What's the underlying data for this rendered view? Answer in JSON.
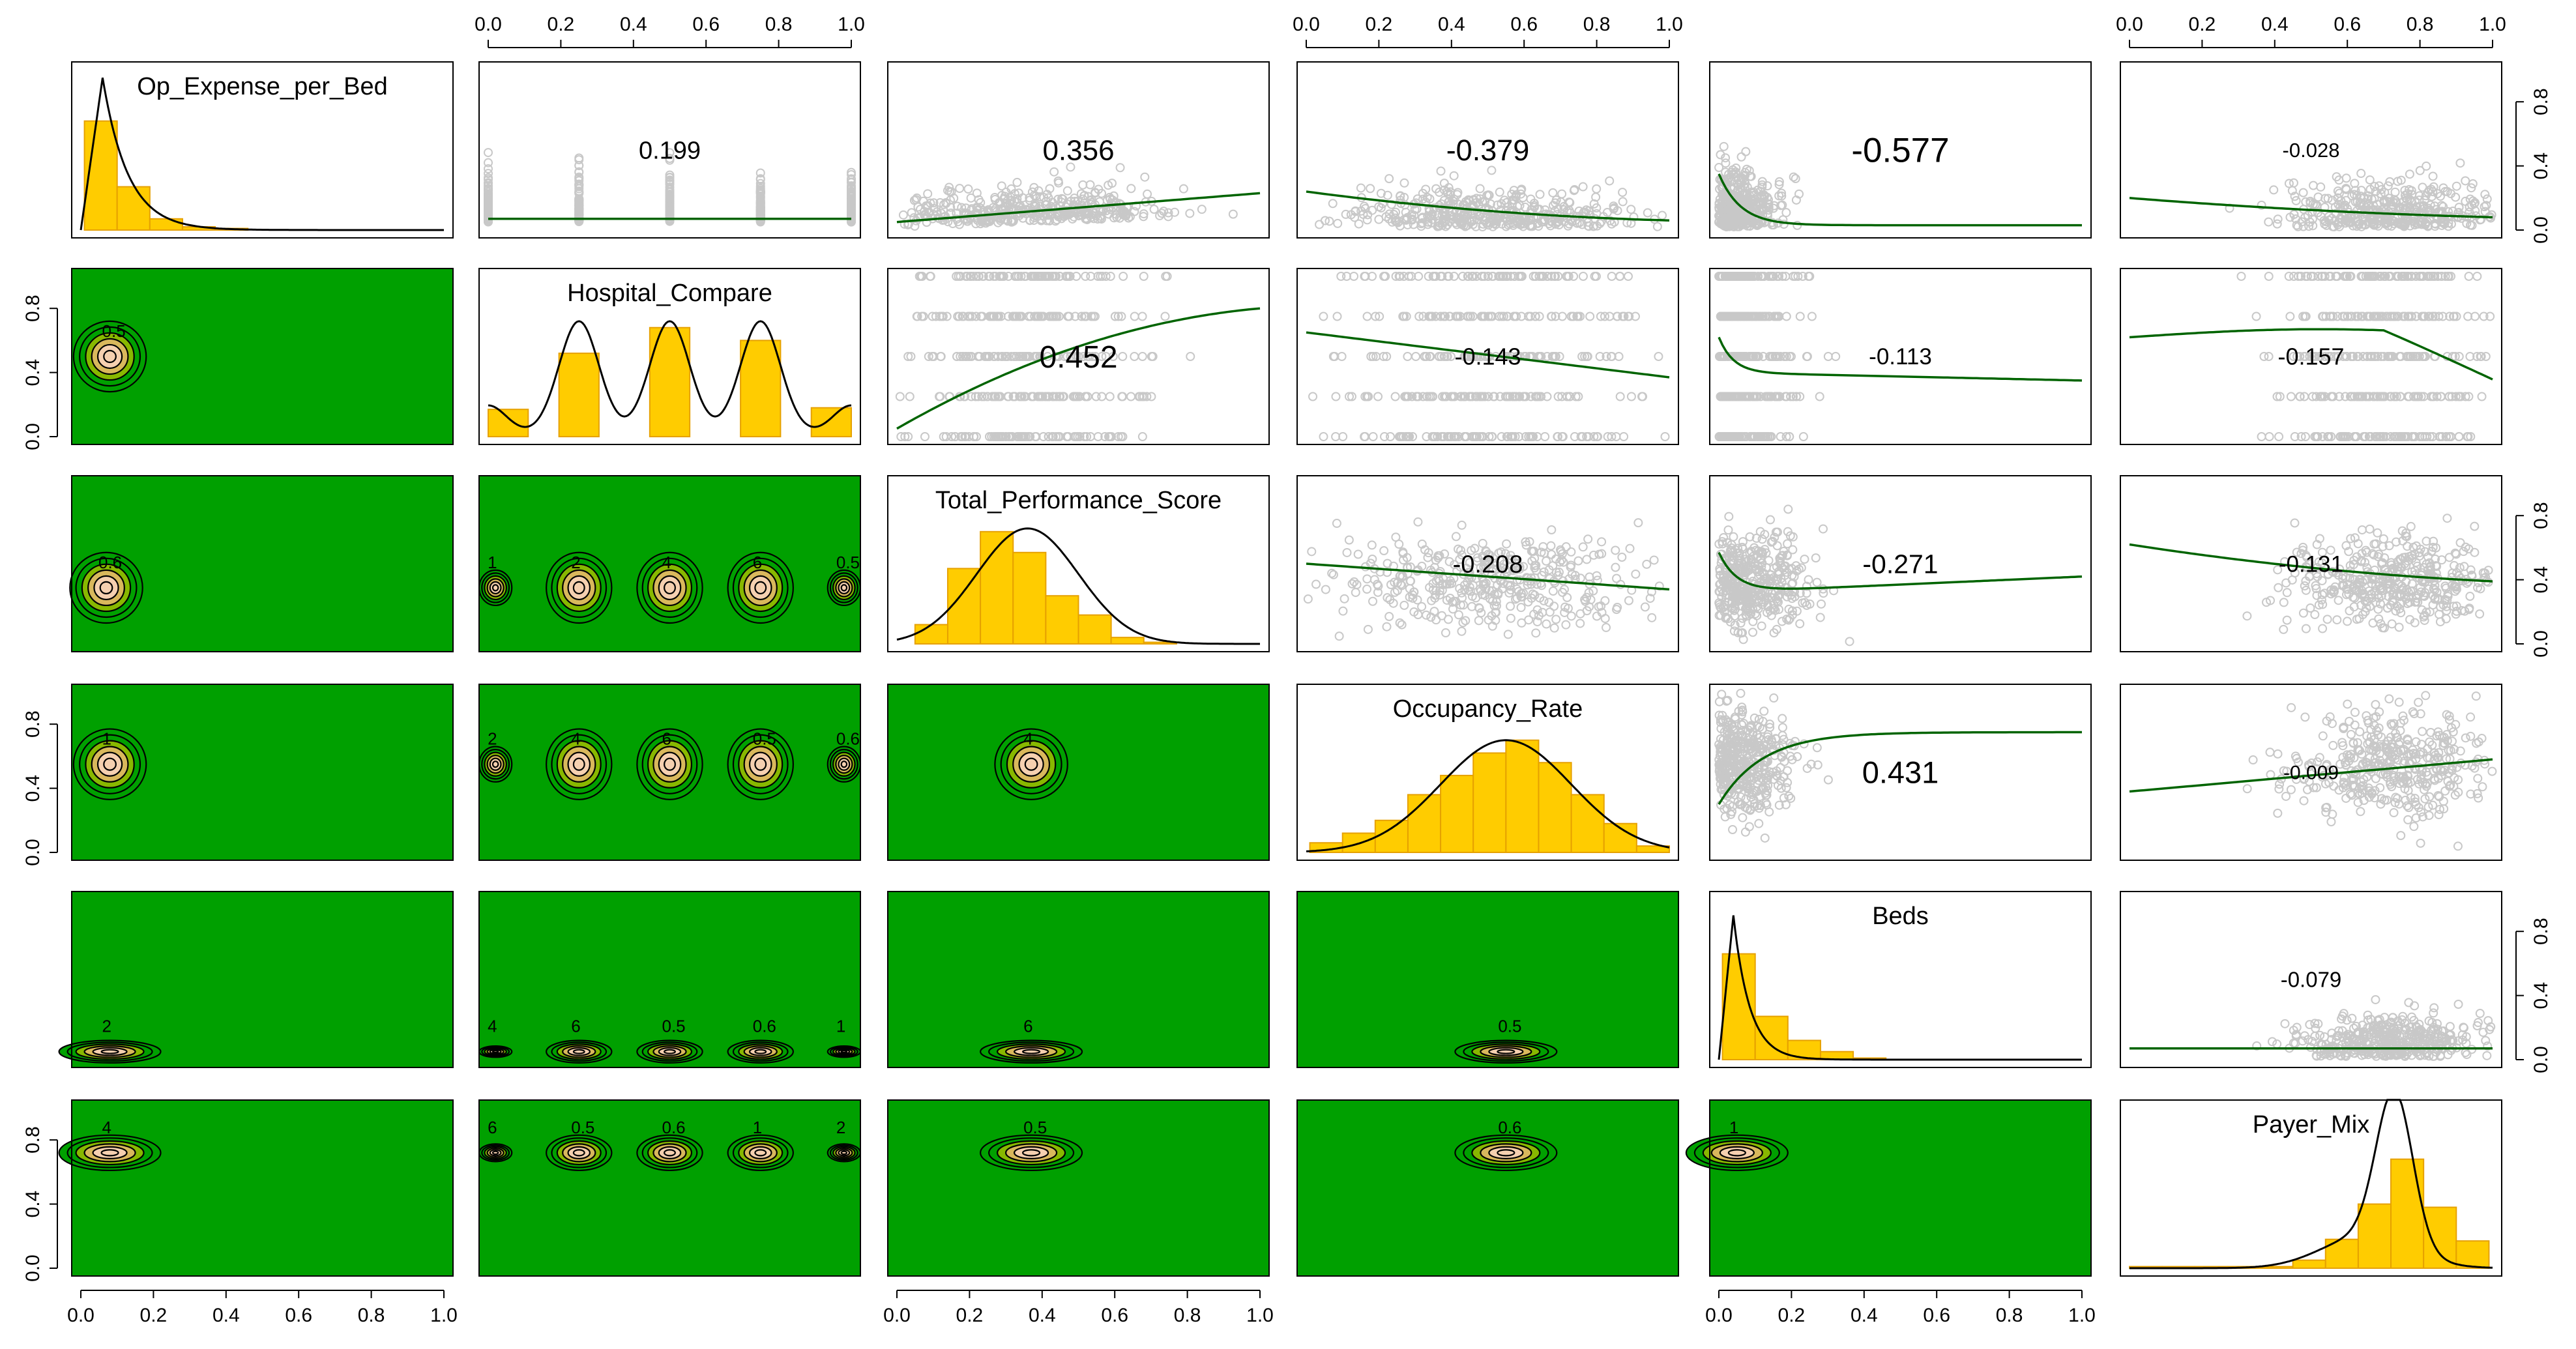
{
  "chart_data": {
    "type": "scatter",
    "title": "",
    "xlabel": "",
    "ylabel": "",
    "xlim": [
      0,
      1
    ],
    "ylim": [
      0,
      1
    ],
    "grid": false,
    "variables": [
      {
        "name": "Op_Expense_per_Bed",
        "histogram": [
          0.68,
          0.27,
          0.07,
          0.02,
          0.01
        ],
        "density_mode": 0.08
      },
      {
        "name": "Hospital_Compare",
        "histogram": [
          0.17,
          0.52,
          0.68,
          0.6,
          0.18
        ],
        "density_mode": 0.5
      },
      {
        "name": "Total_Performance_Score",
        "histogram": [
          0.12,
          0.47,
          0.7,
          0.57,
          0.3,
          0.18,
          0.04,
          0.01
        ],
        "density_mode": 0.36
      },
      {
        "name": "Occupancy_Rate",
        "histogram": [
          0.06,
          0.12,
          0.2,
          0.36,
          0.48,
          0.62,
          0.7,
          0.56,
          0.36,
          0.18,
          0.04
        ],
        "density_mode": 0.55
      },
      {
        "name": "Beds",
        "histogram": [
          0.66,
          0.27,
          0.12,
          0.05,
          0.01
        ],
        "density_mode": 0.04
      },
      {
        "name": "Payer_Mix",
        "histogram": [
          0.01,
          0.01,
          0.01,
          0.01,
          0.01,
          0.05,
          0.18,
          0.4,
          0.68,
          0.38,
          0.17
        ],
        "density_mode": 0.73
      }
    ],
    "correlations": [
      {
        "row": 1,
        "col": 2,
        "value": "0.199"
      },
      {
        "row": 1,
        "col": 3,
        "value": "0.356"
      },
      {
        "row": 1,
        "col": 4,
        "value": "-0.379"
      },
      {
        "row": 1,
        "col": 5,
        "value": "-0.577"
      },
      {
        "row": 1,
        "col": 6,
        "value": "-0.028"
      },
      {
        "row": 2,
        "col": 3,
        "value": "0.452"
      },
      {
        "row": 2,
        "col": 4,
        "value": "-0.143"
      },
      {
        "row": 2,
        "col": 5,
        "value": "-0.113"
      },
      {
        "row": 2,
        "col": 6,
        "value": "-0.157"
      },
      {
        "row": 3,
        "col": 4,
        "value": "-0.208"
      },
      {
        "row": 3,
        "col": 5,
        "value": "-0.271"
      },
      {
        "row": 3,
        "col": 6,
        "value": "-0.131"
      },
      {
        "row": 4,
        "col": 5,
        "value": "0.431"
      },
      {
        "row": 4,
        "col": 6,
        "value": "-0.009"
      },
      {
        "row": 5,
        "col": 6,
        "value": "-0.079"
      }
    ],
    "contour_centers": [
      {
        "row": 2,
        "col": 1,
        "x": 0.08,
        "y": 0.5
      },
      {
        "row": 3,
        "col": 1,
        "x": 0.07,
        "y": 0.35
      },
      {
        "row": 3,
        "col": 2,
        "x": 0.5,
        "y": 0.35
      },
      {
        "row": 4,
        "col": 1,
        "x": 0.08,
        "y": 0.55
      },
      {
        "row": 4,
        "col": 2,
        "x": 0.5,
        "y": 0.55
      },
      {
        "row": 4,
        "col": 3,
        "x": 0.37,
        "y": 0.55
      },
      {
        "row": 5,
        "col": 1,
        "x": 0.08,
        "y": 0.05
      },
      {
        "row": 5,
        "col": 2,
        "x": 0.5,
        "y": 0.05
      },
      {
        "row": 5,
        "col": 3,
        "x": 0.37,
        "y": 0.05
      },
      {
        "row": 5,
        "col": 4,
        "x": 0.55,
        "y": 0.05
      },
      {
        "row": 6,
        "col": 1,
        "x": 0.08,
        "y": 0.72
      },
      {
        "row": 6,
        "col": 2,
        "x": 0.5,
        "y": 0.72
      },
      {
        "row": 6,
        "col": 3,
        "x": 0.37,
        "y": 0.72
      },
      {
        "row": 6,
        "col": 4,
        "x": 0.55,
        "y": 0.72
      },
      {
        "row": 6,
        "col": 5,
        "x": 0.05,
        "y": 0.72
      }
    ],
    "contour_labels": [
      "2",
      "4",
      "6",
      "0.5",
      "0.6",
      "1"
    ],
    "tick_labels": [
      "0.0",
      "0.2",
      "0.4",
      "0.6",
      "0.8",
      "1.0"
    ],
    "y_tick_labels": [
      "0.0",
      "0.4",
      "0.8"
    ],
    "colors": {
      "histogram": "#ffcc00",
      "histogram_edge": "#e6a100",
      "smoother": "#006400",
      "points": "#c8c8c8",
      "contour_fill": "#00a000",
      "density_line": "#000000"
    }
  }
}
